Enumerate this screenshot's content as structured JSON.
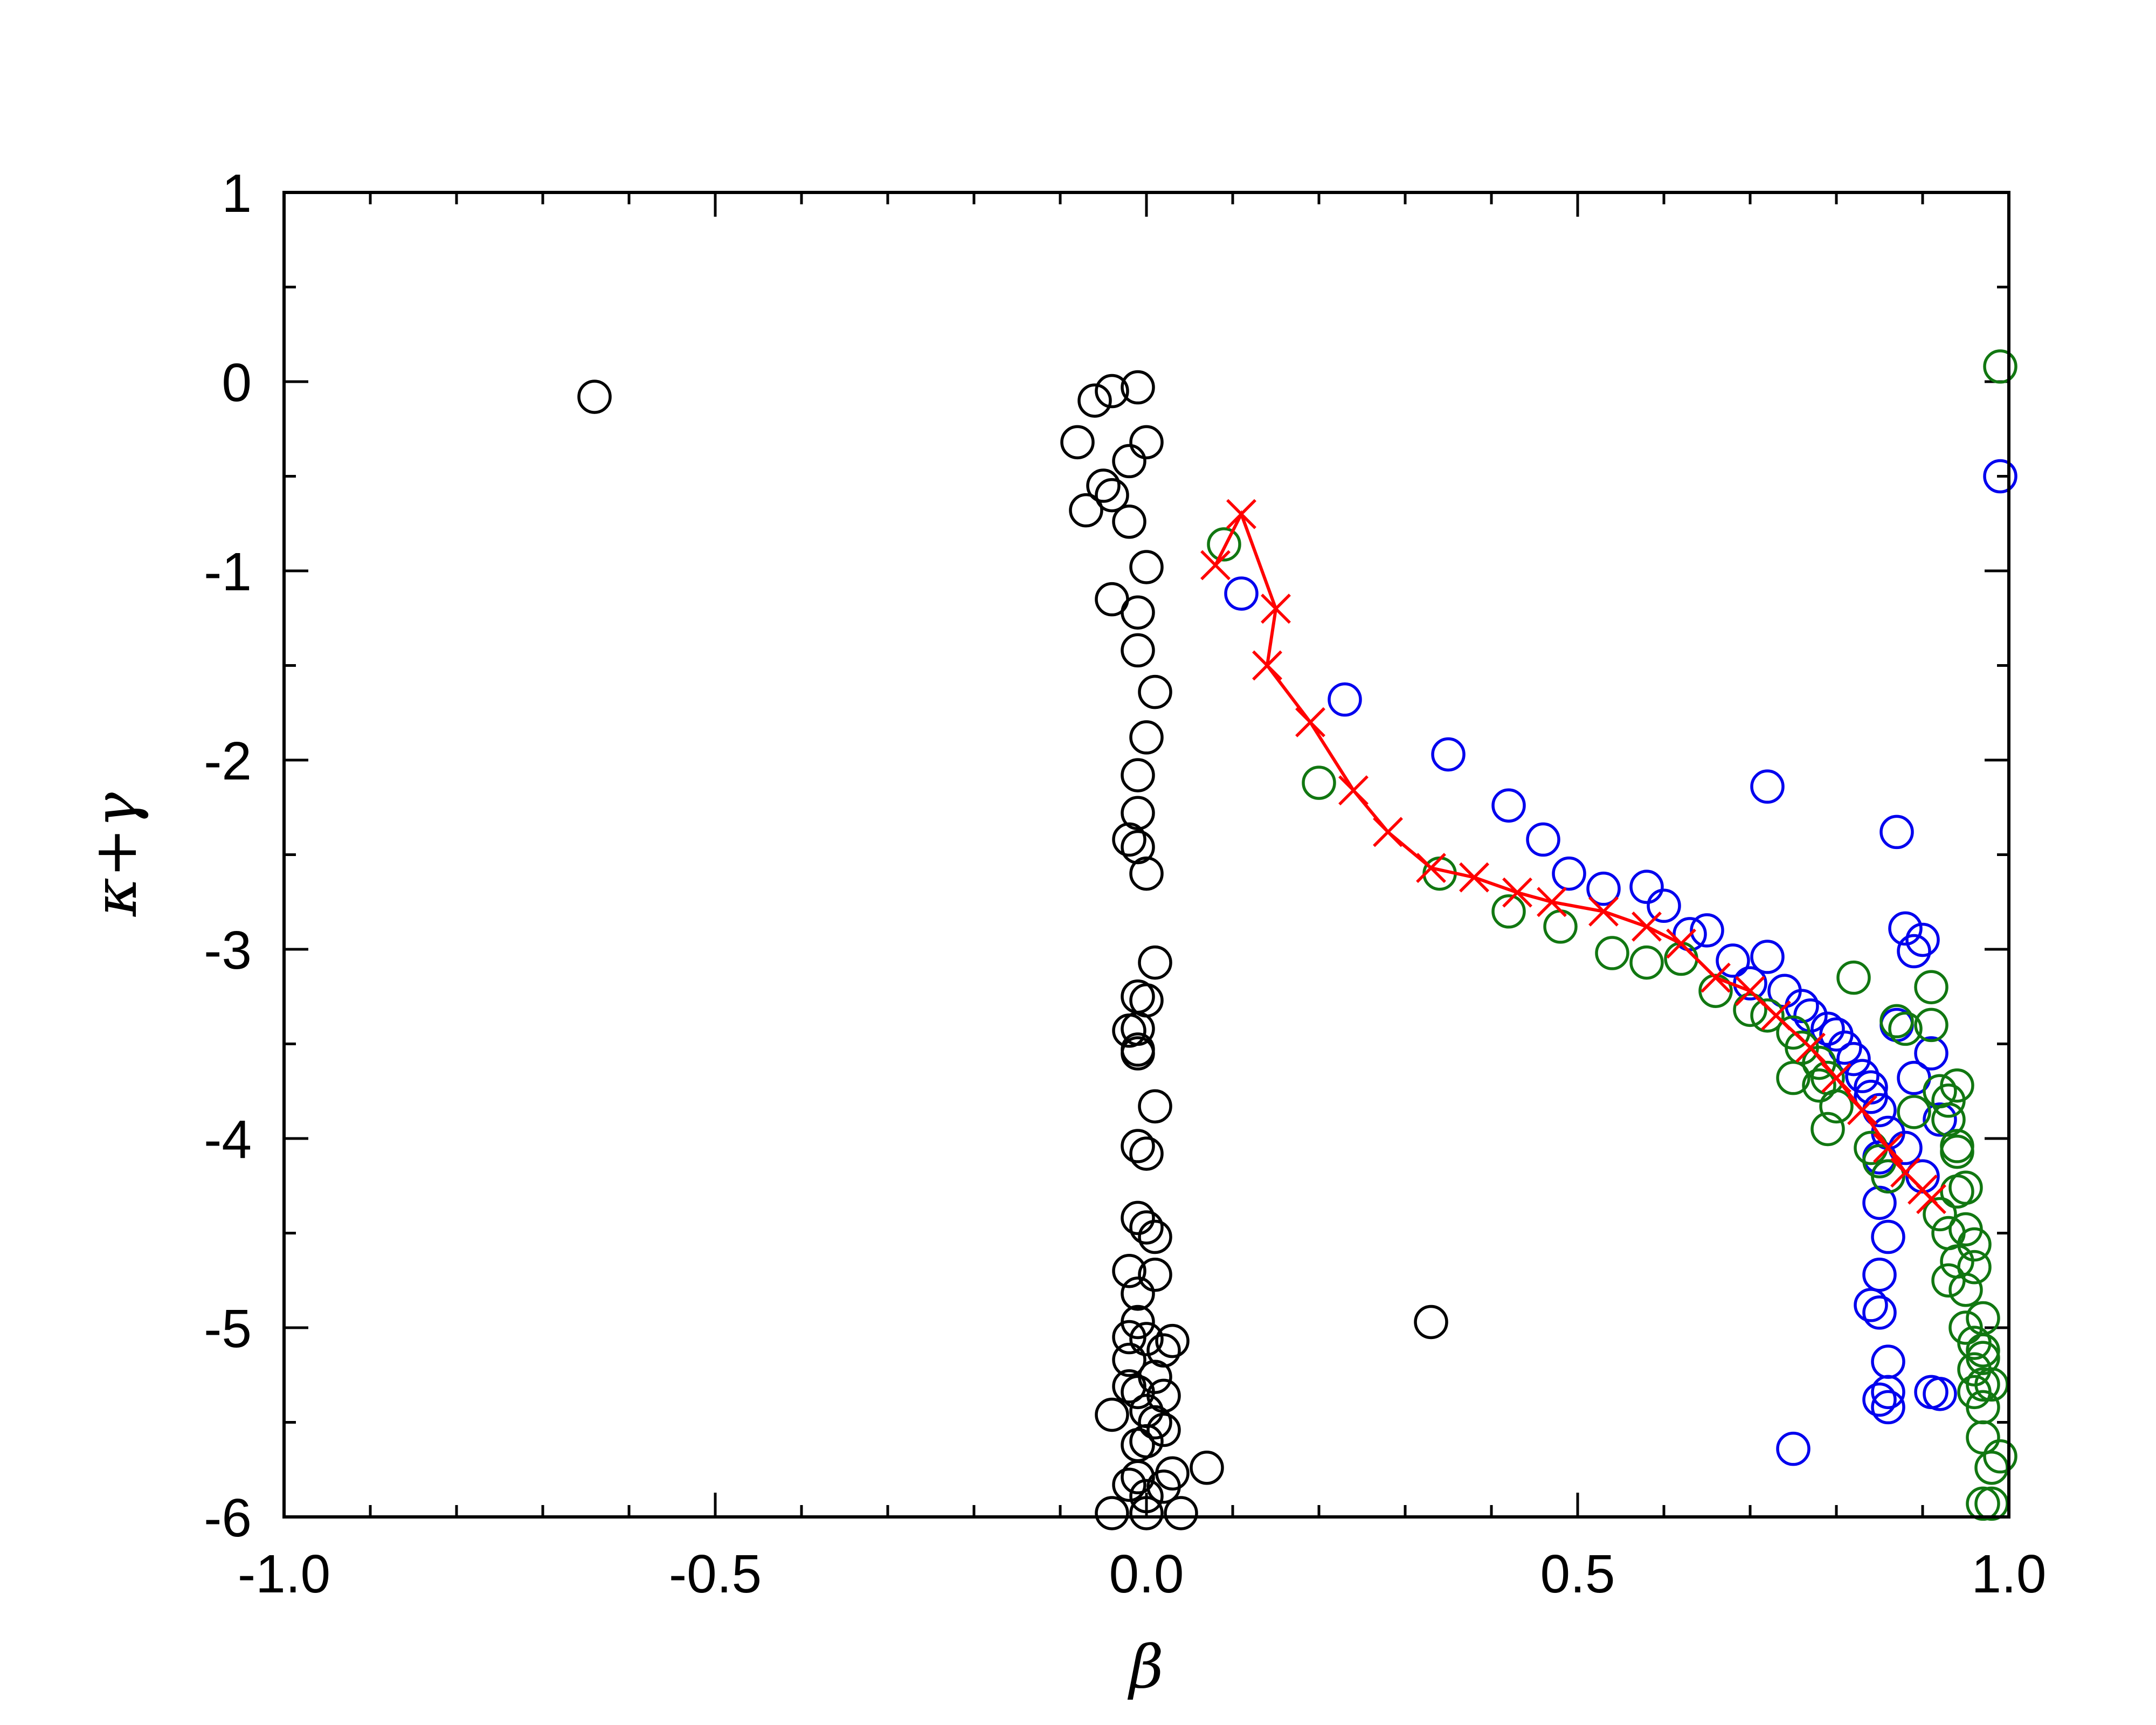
{
  "chart_data": {
    "type": "scatter",
    "xlabel": "β",
    "ylabel": "κ+γ",
    "xlim": [
      -1.0,
      1.0
    ],
    "ylim": [
      -6,
      1
    ],
    "x_ticks": [
      -1.0,
      -0.5,
      0.0,
      0.5,
      1.0
    ],
    "x_tick_labels": [
      "-1.0",
      "-0.5",
      "0.0",
      "0.5",
      "1.0"
    ],
    "y_ticks": [
      1,
      0,
      -1,
      -2,
      -3,
      -4,
      -5,
      -6
    ],
    "y_tick_labels": [
      "1",
      "0",
      "-1",
      "-2",
      "-3",
      "-4",
      "-5",
      "-6"
    ],
    "grid": false,
    "series": [
      {
        "marker": "circle",
        "color": "#000000",
        "points": [
          [
            -0.64,
            -0.08
          ],
          [
            -0.06,
            -0.1
          ],
          [
            -0.04,
            -0.05
          ],
          [
            -0.01,
            -0.03
          ],
          [
            -0.08,
            -0.32
          ],
          [
            0.0,
            -0.32
          ],
          [
            -0.02,
            -0.42
          ],
          [
            -0.04,
            -0.6
          ],
          [
            -0.05,
            -0.55
          ],
          [
            -0.07,
            -0.68
          ],
          [
            -0.02,
            -0.74
          ],
          [
            0.0,
            -0.98
          ],
          [
            -0.04,
            -1.15
          ],
          [
            -0.01,
            -1.22
          ],
          [
            -0.01,
            -1.42
          ],
          [
            0.01,
            -1.64
          ],
          [
            0.0,
            -1.88
          ],
          [
            -0.01,
            -2.08
          ],
          [
            -0.01,
            -2.28
          ],
          [
            -0.02,
            -2.42
          ],
          [
            -0.01,
            -2.46
          ],
          [
            0.0,
            -2.6
          ],
          [
            0.01,
            -3.07
          ],
          [
            -0.01,
            -3.25
          ],
          [
            0.0,
            -3.27
          ],
          [
            -0.02,
            -3.43
          ],
          [
            -0.01,
            -3.42
          ],
          [
            -0.01,
            -3.53
          ],
          [
            -0.01,
            -3.55
          ],
          [
            0.01,
            -3.83
          ],
          [
            -0.01,
            -4.04
          ],
          [
            0.0,
            -4.08
          ],
          [
            -0.01,
            -4.42
          ],
          [
            0.0,
            -4.47
          ],
          [
            0.01,
            -4.52
          ],
          [
            -0.02,
            -4.7
          ],
          [
            0.01,
            -4.72
          ],
          [
            -0.01,
            -4.82
          ],
          [
            -0.01,
            -4.97
          ],
          [
            -0.02,
            -5.05
          ],
          [
            0.0,
            -5.06
          ],
          [
            0.03,
            -5.07
          ],
          [
            0.02,
            -5.12
          ],
          [
            -0.02,
            -5.17
          ],
          [
            0.01,
            -5.26
          ],
          [
            -0.02,
            -5.31
          ],
          [
            -0.01,
            -5.34
          ],
          [
            0.02,
            -5.36
          ],
          [
            -0.04,
            -5.46
          ],
          [
            0.0,
            -5.44
          ],
          [
            0.01,
            -5.5
          ],
          [
            0.02,
            -5.54
          ],
          [
            -0.01,
            -5.62
          ],
          [
            0.0,
            -5.6
          ],
          [
            0.07,
            -5.74
          ],
          [
            -0.01,
            -5.79
          ],
          [
            0.03,
            -5.77
          ],
          [
            0.02,
            -5.84
          ],
          [
            -0.02,
            -5.83
          ],
          [
            0.0,
            -5.89
          ],
          [
            -0.04,
            -5.98
          ],
          [
            0.0,
            -5.98
          ],
          [
            0.04,
            -5.98
          ],
          [
            0.33,
            -4.97
          ]
        ]
      },
      {
        "marker": "circle",
        "color": "#0000ee",
        "points": [
          [
            0.11,
            -1.12
          ],
          [
            0.23,
            -1.68
          ],
          [
            0.35,
            -1.97
          ],
          [
            0.42,
            -2.24
          ],
          [
            0.46,
            -2.42
          ],
          [
            0.49,
            -2.6
          ],
          [
            0.53,
            -2.68
          ],
          [
            0.58,
            -2.67
          ],
          [
            0.6,
            -2.77
          ],
          [
            0.63,
            -2.92
          ],
          [
            0.65,
            -2.9
          ],
          [
            0.68,
            -3.06
          ],
          [
            0.72,
            -3.04
          ],
          [
            0.7,
            -3.18
          ],
          [
            0.74,
            -3.22
          ],
          [
            0.76,
            -3.3
          ],
          [
            0.77,
            -3.35
          ],
          [
            0.79,
            -3.42
          ],
          [
            0.8,
            -3.45
          ],
          [
            0.81,
            -3.52
          ],
          [
            0.82,
            -3.58
          ],
          [
            0.83,
            -3.67
          ],
          [
            0.84,
            -3.73
          ],
          [
            0.84,
            -3.78
          ],
          [
            0.85,
            -3.85
          ],
          [
            0.86,
            -3.97
          ],
          [
            0.85,
            -4.1
          ],
          [
            0.86,
            -4.2
          ],
          [
            0.85,
            -4.34
          ],
          [
            0.86,
            -4.52
          ],
          [
            0.85,
            -4.72
          ],
          [
            0.84,
            -4.88
          ],
          [
            0.85,
            -4.92
          ],
          [
            0.86,
            -5.18
          ],
          [
            0.86,
            -5.34
          ],
          [
            0.85,
            -5.38
          ],
          [
            0.86,
            -5.42
          ],
          [
            0.75,
            -5.64
          ],
          [
            0.72,
            -2.14
          ],
          [
            0.87,
            -2.38
          ],
          [
            0.88,
            -2.89
          ],
          [
            0.89,
            -3.01
          ],
          [
            0.9,
            -2.95
          ],
          [
            0.87,
            -3.4
          ],
          [
            0.91,
            -3.55
          ],
          [
            0.89,
            -3.68
          ],
          [
            0.92,
            -3.9
          ],
          [
            0.91,
            -5.34
          ],
          [
            0.92,
            -5.35
          ],
          [
            0.99,
            -0.5
          ],
          [
            0.9,
            -4.2
          ],
          [
            0.88,
            -4.05
          ]
        ]
      },
      {
        "marker": "circle",
        "color": "#117711",
        "points": [
          [
            0.09,
            -0.86
          ],
          [
            0.2,
            -2.12
          ],
          [
            0.34,
            -2.6
          ],
          [
            0.42,
            -2.8
          ],
          [
            0.48,
            -2.88
          ],
          [
            0.54,
            -3.02
          ],
          [
            0.58,
            -3.07
          ],
          [
            0.62,
            -3.05
          ],
          [
            0.66,
            -3.22
          ],
          [
            0.7,
            -3.32
          ],
          [
            0.72,
            -3.35
          ],
          [
            0.75,
            -3.44
          ],
          [
            0.76,
            -3.52
          ],
          [
            0.78,
            -3.6
          ],
          [
            0.79,
            -3.68
          ],
          [
            0.78,
            -3.72
          ],
          [
            0.8,
            -3.83
          ],
          [
            0.79,
            -3.95
          ],
          [
            0.82,
            -3.15
          ],
          [
            0.84,
            -4.05
          ],
          [
            0.85,
            -4.12
          ],
          [
            0.86,
            -4.2
          ],
          [
            0.87,
            -3.38
          ],
          [
            0.88,
            -3.42
          ],
          [
            0.89,
            -3.86
          ],
          [
            0.91,
            -3.2
          ],
          [
            0.91,
            -3.4
          ],
          [
            0.92,
            -3.75
          ],
          [
            0.93,
            -3.8
          ],
          [
            0.94,
            -3.72
          ],
          [
            0.93,
            -3.9
          ],
          [
            0.94,
            -4.04
          ],
          [
            0.94,
            -4.07
          ],
          [
            0.95,
            -4.26
          ],
          [
            0.94,
            -4.28
          ],
          [
            0.92,
            -4.4
          ],
          [
            0.93,
            -4.5
          ],
          [
            0.95,
            -4.48
          ],
          [
            0.96,
            -4.56
          ],
          [
            0.94,
            -4.65
          ],
          [
            0.96,
            -4.68
          ],
          [
            0.93,
            -4.75
          ],
          [
            0.95,
            -4.8
          ],
          [
            0.97,
            -4.95
          ],
          [
            0.95,
            -5.0
          ],
          [
            0.96,
            -5.08
          ],
          [
            0.97,
            -5.12
          ],
          [
            0.97,
            -5.16
          ],
          [
            0.96,
            -5.22
          ],
          [
            0.97,
            -5.3
          ],
          [
            0.98,
            -5.3
          ],
          [
            0.96,
            -5.34
          ],
          [
            0.97,
            -5.42
          ],
          [
            0.97,
            -5.58
          ],
          [
            0.98,
            -5.74
          ],
          [
            0.99,
            -5.68
          ],
          [
            0.97,
            -5.93
          ],
          [
            0.98,
            -5.93
          ],
          [
            0.99,
            0.08
          ],
          [
            0.75,
            -3.68
          ]
        ]
      },
      {
        "marker": "x",
        "color": "#ff0000",
        "line": true,
        "points": [
          [
            0.08,
            -0.97
          ],
          [
            0.11,
            -0.7
          ],
          [
            0.15,
            -1.2
          ],
          [
            0.14,
            -1.5
          ],
          [
            0.19,
            -1.8
          ],
          [
            0.24,
            -2.16
          ],
          [
            0.28,
            -2.38
          ],
          [
            0.33,
            -2.57
          ],
          [
            0.38,
            -2.62
          ],
          [
            0.43,
            -2.7
          ],
          [
            0.47,
            -2.75
          ],
          [
            0.53,
            -2.8
          ],
          [
            0.58,
            -2.88
          ],
          [
            0.62,
            -2.97
          ],
          [
            0.66,
            -3.15
          ],
          [
            0.7,
            -3.22
          ],
          [
            0.73,
            -3.35
          ],
          [
            0.77,
            -3.52
          ],
          [
            0.8,
            -3.68
          ],
          [
            0.83,
            -3.85
          ],
          [
            0.86,
            -4.05
          ],
          [
            0.88,
            -4.18
          ],
          [
            0.9,
            -4.27
          ],
          [
            0.91,
            -4.32
          ]
        ]
      }
    ]
  }
}
